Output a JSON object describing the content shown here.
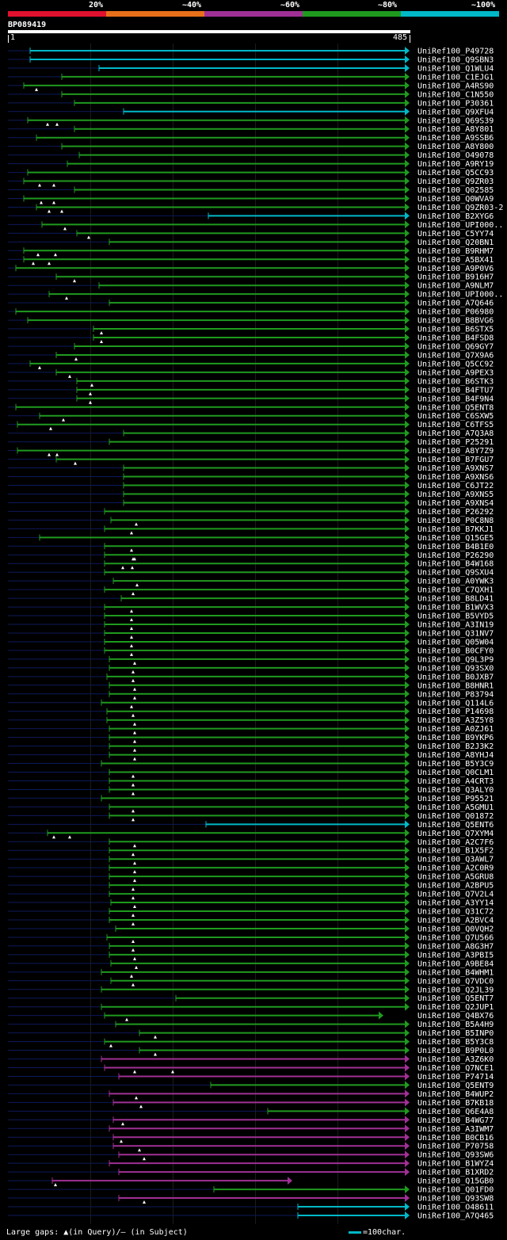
{
  "legend": [
    {
      "label": "20%",
      "color": "#e0102f"
    },
    {
      "label": "~40%",
      "color": "#e8701a"
    },
    {
      "label": "~60%",
      "color": "#a03095"
    },
    {
      "label": "~80%",
      "color": "#1f9a1f"
    },
    {
      "label": "~100%",
      "color": "#00b8c8"
    }
  ],
  "query": {
    "id": "BP089419",
    "start": "1",
    "end": "485"
  },
  "footer": {
    "gaps_note": "Large gaps: ▲(in Query)/— (in Subject)",
    "scale_note": "=100char."
  },
  "hits": [
    {
      "label": "UniRef100_P49728",
      "x1": 38,
      "x2": 517,
      "color": "cyan",
      "tri": []
    },
    {
      "label": "UniRef100_Q9SBN3",
      "x1": 38,
      "x2": 517,
      "color": "cyan",
      "tri": []
    },
    {
      "label": "UniRef100_Q1WLU4",
      "x1": 125,
      "x2": 517,
      "color": "cyan",
      "tri": []
    },
    {
      "label": "UniRef100_C1EJG1",
      "x1": 78,
      "x2": 517,
      "color": "green",
      "tri": []
    },
    {
      "label": "UniRef100_A4RS90",
      "x1": 30,
      "x2": 517,
      "color": "green",
      "tri": [
        46
      ]
    },
    {
      "label": "UniRef100_C1N550",
      "x1": 78,
      "x2": 517,
      "color": "green",
      "tri": []
    },
    {
      "label": "UniRef100_P30361",
      "x1": 94,
      "x2": 517,
      "color": "green",
      "tri": []
    },
    {
      "label": "UniRef100_Q9XFU4",
      "x1": 156,
      "x2": 517,
      "color": "cyan",
      "tri": []
    },
    {
      "label": "UniRef100_Q69S39",
      "x1": 35,
      "x2": 517,
      "color": "green",
      "tri": [
        60,
        72
      ]
    },
    {
      "label": "UniRef100_A8Y801",
      "x1": 94,
      "x2": 517,
      "color": "green",
      "tri": []
    },
    {
      "label": "UniRef100_A9SSB6",
      "x1": 46,
      "x2": 517,
      "color": "green",
      "tri": []
    },
    {
      "label": "UniRef100_A8Y800",
      "x1": 78,
      "x2": 517,
      "color": "green",
      "tri": []
    },
    {
      "label": "UniRef100_O49078",
      "x1": 100,
      "x2": 517,
      "color": "green",
      "tri": []
    },
    {
      "label": "UniRef100_A9RY19",
      "x1": 85,
      "x2": 517,
      "color": "green",
      "tri": []
    },
    {
      "label": "UniRef100_Q5CC93",
      "x1": 35,
      "x2": 517,
      "color": "green",
      "tri": []
    },
    {
      "label": "UniRef100_Q9ZR03",
      "x1": 30,
      "x2": 517,
      "color": "green",
      "tri": [
        50,
        68
      ]
    },
    {
      "label": "UniRef100_Q02585",
      "x1": 94,
      "x2": 517,
      "color": "green",
      "tri": []
    },
    {
      "label": "UniRef100_Q0WVA9",
      "x1": 30,
      "x2": 517,
      "color": "green",
      "tri": [
        52,
        68
      ]
    },
    {
      "label": "UniRef100_Q9ZR03-2",
      "x1": 46,
      "x2": 517,
      "color": "green",
      "tri": [
        62,
        78
      ]
    },
    {
      "label": "UniRef100_B2XYG6",
      "x1": 263,
      "x2": 517,
      "color": "cyan",
      "tri": []
    },
    {
      "label": "UniRef100_UPI000..",
      "x1": 53,
      "x2": 517,
      "color": "green",
      "tri": [
        82
      ]
    },
    {
      "label": "UniRef100_C5YY74",
      "x1": 97,
      "x2": 517,
      "color": "green",
      "tri": [
        112
      ]
    },
    {
      "label": "UniRef100_Q20BN1",
      "x1": 138,
      "x2": 517,
      "color": "green",
      "tri": []
    },
    {
      "label": "UniRef100_B9RHM7",
      "x1": 30,
      "x2": 517,
      "color": "green",
      "tri": [
        48,
        70
      ]
    },
    {
      "label": "UniRef100_A5BX41",
      "x1": 30,
      "x2": 517,
      "color": "green",
      "tri": [
        42,
        62
      ]
    },
    {
      "label": "UniRef100_A9P0V6",
      "x1": 20,
      "x2": 517,
      "color": "green",
      "tri": []
    },
    {
      "label": "UniRef100_B916H7",
      "x1": 71,
      "x2": 517,
      "color": "green",
      "tri": [
        94
      ]
    },
    {
      "label": "UniRef100_A9NLM7",
      "x1": 125,
      "x2": 517,
      "color": "green",
      "tri": []
    },
    {
      "label": "UniRef100_UPI000..",
      "x1": 62,
      "x2": 517,
      "color": "green",
      "tri": [
        84
      ]
    },
    {
      "label": "UniRef100_A7Q646",
      "x1": 138,
      "x2": 517,
      "color": "green",
      "tri": []
    },
    {
      "label": "UniRef100_P06980",
      "x1": 20,
      "x2": 517,
      "color": "green",
      "tri": []
    },
    {
      "label": "UniRef100_B8BVG6",
      "x1": 35,
      "x2": 517,
      "color": "green",
      "tri": []
    },
    {
      "label": "UniRef100_B6STX5",
      "x1": 118,
      "x2": 517,
      "color": "green",
      "tri": [
        128
      ]
    },
    {
      "label": "UniRef100_B4FSD8",
      "x1": 118,
      "x2": 517,
      "color": "green",
      "tri": [
        128
      ]
    },
    {
      "label": "UniRef100_Q69GY7",
      "x1": 94,
      "x2": 517,
      "color": "green",
      "tri": []
    },
    {
      "label": "UniRef100_Q7X9A6",
      "x1": 71,
      "x2": 517,
      "color": "green",
      "tri": [
        96
      ]
    },
    {
      "label": "UniRef100_Q5CC92",
      "x1": 38,
      "x2": 517,
      "color": "green",
      "tri": [
        50
      ]
    },
    {
      "label": "UniRef100_A9PEX3",
      "x1": 71,
      "x2": 517,
      "color": "green",
      "tri": [
        88
      ]
    },
    {
      "label": "UniRef100_B6STK3",
      "x1": 97,
      "x2": 517,
      "color": "green",
      "tri": [
        116
      ]
    },
    {
      "label": "UniRef100_B4FTU7",
      "x1": 97,
      "x2": 517,
      "color": "green",
      "tri": [
        114
      ]
    },
    {
      "label": "UniRef100_B4F9N4",
      "x1": 97,
      "x2": 517,
      "color": "green",
      "tri": [
        114
      ]
    },
    {
      "label": "UniRef100_Q5ENT8",
      "x1": 20,
      "x2": 517,
      "color": "green",
      "tri": []
    },
    {
      "label": "UniRef100_C6SXW5",
      "x1": 50,
      "x2": 517,
      "color": "green",
      "tri": [
        80
      ]
    },
    {
      "label": "UniRef100_C6TFS5",
      "x1": 22,
      "x2": 517,
      "color": "green",
      "tri": [
        64
      ]
    },
    {
      "label": "UniRef100_A7Q3A8",
      "x1": 156,
      "x2": 517,
      "color": "green",
      "tri": []
    },
    {
      "label": "UniRef100_P25291",
      "x1": 138,
      "x2": 517,
      "color": "green",
      "tri": []
    },
    {
      "label": "UniRef100_A8Y7Z9",
      "x1": 22,
      "x2": 517,
      "color": "green",
      "tri": [
        62,
        72
      ]
    },
    {
      "label": "UniRef100_B7FGU7",
      "x1": 71,
      "x2": 517,
      "color": "green",
      "tri": [
        95
      ]
    },
    {
      "label": "UniRef100_A9XNS7",
      "x1": 156,
      "x2": 517,
      "color": "green",
      "tri": []
    },
    {
      "label": "UniRef100_A9XNS6",
      "x1": 156,
      "x2": 517,
      "color": "green",
      "tri": []
    },
    {
      "label": "UniRef100_C6JT22",
      "x1": 156,
      "x2": 517,
      "color": "green",
      "tri": []
    },
    {
      "label": "UniRef100_A9XNS5",
      "x1": 156,
      "x2": 517,
      "color": "green",
      "tri": []
    },
    {
      "label": "UniRef100_A9XNS4",
      "x1": 156,
      "x2": 517,
      "color": "green",
      "tri": []
    },
    {
      "label": "UniRef100_P26292",
      "x1": 132,
      "x2": 517,
      "color": "green",
      "tri": []
    },
    {
      "label": "UniRef100_P0C8N8",
      "x1": 140,
      "x2": 517,
      "color": "green",
      "tri": [
        172
      ]
    },
    {
      "label": "UniRef100_B7KKJ1",
      "x1": 132,
      "x2": 517,
      "color": "green",
      "tri": [
        166
      ]
    },
    {
      "label": "UniRef100_Q15GE5",
      "x1": 50,
      "x2": 517,
      "color": "green",
      "tri": []
    },
    {
      "label": "UniRef100_B4B1E0",
      "x1": 132,
      "x2": 517,
      "color": "green",
      "tri": [
        166
      ]
    },
    {
      "label": "UniRef100_P26290",
      "x1": 132,
      "x2": 517,
      "color": "green",
      "tri": [
        168,
        170
      ]
    },
    {
      "label": "UniRef100_B4W168",
      "x1": 132,
      "x2": 517,
      "color": "green",
      "tri": [
        155,
        167
      ]
    },
    {
      "label": "UniRef100_Q9SXU4",
      "x1": 132,
      "x2": 517,
      "color": "green",
      "tri": []
    },
    {
      "label": "UniRef100_A0YWK3",
      "x1": 143,
      "x2": 517,
      "color": "green",
      "tri": [
        173
      ]
    },
    {
      "label": "UniRef100_C7QXH1",
      "x1": 132,
      "x2": 517,
      "color": "green",
      "tri": [
        168
      ]
    },
    {
      "label": "UniRef100_B8LD41",
      "x1": 153,
      "x2": 517,
      "color": "green",
      "tri": []
    },
    {
      "label": "UniRef100_B1WVX3",
      "x1": 132,
      "x2": 517,
      "color": "green",
      "tri": [
        166
      ]
    },
    {
      "label": "UniRef100_B5VYD5",
      "x1": 132,
      "x2": 517,
      "color": "green",
      "tri": [
        166
      ]
    },
    {
      "label": "UniRef100_A3IN19",
      "x1": 132,
      "x2": 517,
      "color": "green",
      "tri": [
        166
      ]
    },
    {
      "label": "UniRef100_Q31NV7",
      "x1": 132,
      "x2": 517,
      "color": "green",
      "tri": [
        166
      ]
    },
    {
      "label": "UniRef100_Q05W04",
      "x1": 132,
      "x2": 517,
      "color": "green",
      "tri": [
        166
      ]
    },
    {
      "label": "UniRef100_B0CFY0",
      "x1": 132,
      "x2": 517,
      "color": "green",
      "tri": [
        166
      ]
    },
    {
      "label": "UniRef100_Q9L3P9",
      "x1": 138,
      "x2": 517,
      "color": "green",
      "tri": [
        170
      ]
    },
    {
      "label": "UniRef100_Q93SX0",
      "x1": 138,
      "x2": 517,
      "color": "green",
      "tri": [
        168
      ]
    },
    {
      "label": "UniRef100_B0JXB7",
      "x1": 135,
      "x2": 517,
      "color": "green",
      "tri": [
        168
      ]
    },
    {
      "label": "UniRef100_B8HNR1",
      "x1": 138,
      "x2": 517,
      "color": "green",
      "tri": [
        170
      ]
    },
    {
      "label": "UniRef100_P83794",
      "x1": 138,
      "x2": 517,
      "color": "green",
      "tri": [
        170
      ]
    },
    {
      "label": "UniRef100_Q114L6",
      "x1": 128,
      "x2": 517,
      "color": "green",
      "tri": [
        166
      ]
    },
    {
      "label": "UniRef100_P14698",
      "x1": 135,
      "x2": 517,
      "color": "green",
      "tri": [
        168
      ]
    },
    {
      "label": "UniRef100_A3Z5Y8",
      "x1": 135,
      "x2": 517,
      "color": "green",
      "tri": [
        170
      ]
    },
    {
      "label": "UniRef100_A0ZJ61",
      "x1": 138,
      "x2": 517,
      "color": "green",
      "tri": [
        170
      ]
    },
    {
      "label": "UniRef100_B9YKP6",
      "x1": 138,
      "x2": 517,
      "color": "green",
      "tri": [
        170
      ]
    },
    {
      "label": "UniRef100_B2J3K2",
      "x1": 138,
      "x2": 517,
      "color": "green",
      "tri": [
        170
      ]
    },
    {
      "label": "UniRef100_A8YHJ4",
      "x1": 138,
      "x2": 517,
      "color": "green",
      "tri": [
        170
      ]
    },
    {
      "label": "UniRef100_B5Y3C9",
      "x1": 128,
      "x2": 517,
      "color": "green",
      "tri": []
    },
    {
      "label": "UniRef100_Q0CLM1",
      "x1": 138,
      "x2": 517,
      "color": "green",
      "tri": [
        168
      ]
    },
    {
      "label": "UniRef100_A4CRT3",
      "x1": 138,
      "x2": 517,
      "color": "green",
      "tri": [
        168
      ]
    },
    {
      "label": "UniRef100_Q3ALY0",
      "x1": 138,
      "x2": 517,
      "color": "green",
      "tri": [
        168
      ]
    },
    {
      "label": "UniRef100_P95521",
      "x1": 128,
      "x2": 517,
      "color": "green",
      "tri": []
    },
    {
      "label": "UniRef100_A5GMU1",
      "x1": 138,
      "x2": 517,
      "color": "green",
      "tri": [
        168
      ]
    },
    {
      "label": "UniRef100_Q01872",
      "x1": 138,
      "x2": 517,
      "color": "green",
      "tri": [
        168
      ]
    },
    {
      "label": "UniRef100_Q5ENT6",
      "x1": 260,
      "x2": 517,
      "color": "cyan",
      "tri": []
    },
    {
      "label": "UniRef100_Q7XYM4",
      "x1": 60,
      "x2": 517,
      "color": "green",
      "tri": [
        68,
        88
      ]
    },
    {
      "label": "UniRef100_A2C7F6",
      "x1": 138,
      "x2": 517,
      "color": "green",
      "tri": [
        170
      ]
    },
    {
      "label": "UniRef100_B1X5F2",
      "x1": 138,
      "x2": 517,
      "color": "green",
      "tri": [
        168
      ]
    },
    {
      "label": "UniRef100_Q3AWL7",
      "x1": 138,
      "x2": 517,
      "color": "green",
      "tri": [
        170
      ]
    },
    {
      "label": "UniRef100_A2C0R9",
      "x1": 138,
      "x2": 517,
      "color": "green",
      "tri": [
        170
      ]
    },
    {
      "label": "UniRef100_A5GRU8",
      "x1": 138,
      "x2": 517,
      "color": "green",
      "tri": [
        170
      ]
    },
    {
      "label": "UniRef100_A2BPU5",
      "x1": 138,
      "x2": 517,
      "color": "green",
      "tri": [
        168
      ]
    },
    {
      "label": "UniRef100_Q7V2L4",
      "x1": 138,
      "x2": 517,
      "color": "green",
      "tri": [
        168
      ]
    },
    {
      "label": "UniRef100_A3YY14",
      "x1": 140,
      "x2": 517,
      "color": "green",
      "tri": [
        170
      ]
    },
    {
      "label": "UniRef100_Q31C72",
      "x1": 138,
      "x2": 517,
      "color": "green",
      "tri": [
        168
      ]
    },
    {
      "label": "UniRef100_A2BVC4",
      "x1": 138,
      "x2": 517,
      "color": "green",
      "tri": [
        168
      ]
    },
    {
      "label": "UniRef100_Q0VQH2",
      "x1": 146,
      "x2": 517,
      "color": "green",
      "tri": []
    },
    {
      "label": "UniRef100_Q7U566",
      "x1": 135,
      "x2": 517,
      "color": "green",
      "tri": [
        168
      ]
    },
    {
      "label": "UniRef100_A8G3H7",
      "x1": 138,
      "x2": 517,
      "color": "green",
      "tri": [
        168
      ]
    },
    {
      "label": "UniRef100_A3PBI5",
      "x1": 138,
      "x2": 517,
      "color": "green",
      "tri": [
        170
      ]
    },
    {
      "label": "UniRef100_A9BE84",
      "x1": 140,
      "x2": 517,
      "color": "green",
      "tri": [
        172
      ]
    },
    {
      "label": "UniRef100_B4WHM1",
      "x1": 128,
      "x2": 517,
      "color": "green",
      "tri": [
        166
      ]
    },
    {
      "label": "UniRef100_Q7VDC0",
      "x1": 140,
      "x2": 517,
      "color": "green",
      "tri": [
        168
      ]
    },
    {
      "label": "UniRef100_Q2JL39",
      "x1": 128,
      "x2": 517,
      "color": "green",
      "tri": []
    },
    {
      "label": "UniRef100_Q5ENT7",
      "x1": 222,
      "x2": 517,
      "color": "green",
      "tri": []
    },
    {
      "label": "UniRef100_Q2JUP1",
      "x1": 128,
      "x2": 517,
      "color": "green",
      "tri": []
    },
    {
      "label": "UniRef100_Q4BX76",
      "x1": 132,
      "x2": 484,
      "color": "green",
      "tri": [
        160
      ]
    },
    {
      "label": "UniRef100_B5A4H9",
      "x1": 146,
      "x2": 517,
      "color": "green",
      "tri": []
    },
    {
      "label": "UniRef100_B5INP0",
      "x1": 176,
      "x2": 517,
      "color": "green",
      "tri": [
        196
      ]
    },
    {
      "label": "UniRef100_B5Y3C8",
      "x1": 132,
      "x2": 517,
      "color": "green",
      "tri": [
        140
      ]
    },
    {
      "label": "UniRef100_B9P0L0",
      "x1": 176,
      "x2": 517,
      "color": "green",
      "tri": [
        196
      ]
    },
    {
      "label": "UniRef100_A3Z6K0",
      "x1": 128,
      "x2": 517,
      "color": "purple",
      "tri": []
    },
    {
      "label": "UniRef100_Q7NCE1",
      "x1": 132,
      "x2": 517,
      "color": "purple",
      "tri": [
        170,
        218
      ]
    },
    {
      "label": "UniRef100_P74714",
      "x1": 150,
      "x2": 517,
      "color": "purple",
      "tri": []
    },
    {
      "label": "UniRef100_Q5ENT9",
      "x1": 266,
      "x2": 517,
      "color": "green",
      "tri": []
    },
    {
      "label": "UniRef100_B4WUP2",
      "x1": 138,
      "x2": 517,
      "color": "purple",
      "tri": [
        172
      ]
    },
    {
      "label": "UniRef100_B7KB18",
      "x1": 143,
      "x2": 517,
      "color": "purple",
      "tri": [
        178
      ]
    },
    {
      "label": "UniRef100_Q6E4A8",
      "x1": 338,
      "x2": 517,
      "color": "green",
      "tri": []
    },
    {
      "label": "UniRef100_B4WG77",
      "x1": 143,
      "x2": 517,
      "color": "purple",
      "tri": [
        155
      ]
    },
    {
      "label": "UniRef100_A3IWM7",
      "x1": 138,
      "x2": 517,
      "color": "purple",
      "tri": []
    },
    {
      "label": "UniRef100_B0CB16",
      "x1": 143,
      "x2": 517,
      "color": "purple",
      "tri": [
        153
      ]
    },
    {
      "label": "UniRef100_P70758",
      "x1": 143,
      "x2": 517,
      "color": "purple",
      "tri": [
        176
      ]
    },
    {
      "label": "UniRef100_Q93SW6",
      "x1": 150,
      "x2": 517,
      "color": "purple",
      "tri": [
        182
      ]
    },
    {
      "label": "UniRef100_B1WYZ4",
      "x1": 138,
      "x2": 517,
      "color": "purple",
      "tri": []
    },
    {
      "label": "UniRef100_B1XRD2",
      "x1": 150,
      "x2": 517,
      "color": "purple",
      "tri": []
    },
    {
      "label": "UniRef100_Q15GB0",
      "x1": 66,
      "x2": 369,
      "color": "purple",
      "tri": [
        70
      ]
    },
    {
      "label": "UniRef100_Q01FD0",
      "x1": 270,
      "x2": 517,
      "color": "green",
      "tri": []
    },
    {
      "label": "UniRef100_Q93SW8",
      "x1": 150,
      "x2": 517,
      "color": "purple",
      "tri": [
        182
      ]
    },
    {
      "label": "UniRef100_O48611",
      "x1": 376,
      "x2": 517,
      "color": "cyan",
      "tri": []
    },
    {
      "label": "UniRef100_A7Q465",
      "x1": 376,
      "x2": 517,
      "color": "cyan",
      "tri": []
    }
  ]
}
